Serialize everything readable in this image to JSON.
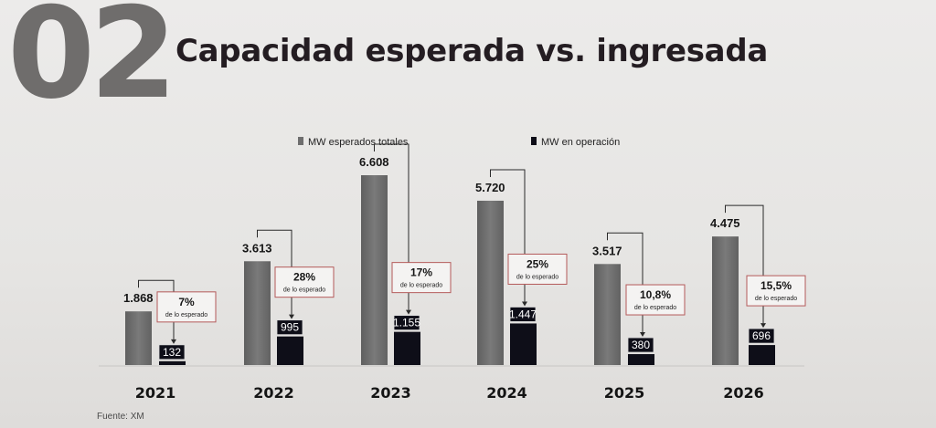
{
  "header": {
    "section_number": "02",
    "title": "Capacidad esperada vs. ingresada"
  },
  "footer": {
    "source": "Fuente: XM"
  },
  "colors": {
    "expected": "#6e6e6e",
    "operation": "#0e0e18",
    "callout_border": "#b45a5a"
  },
  "chart_data": {
    "type": "bar",
    "title": "Capacidad esperada vs. ingresada",
    "categories": [
      "2021",
      "2022",
      "2023",
      "2024",
      "2025",
      "2026"
    ],
    "series": [
      {
        "name": "MW esperados totales",
        "values": [
          1868,
          3613,
          6608,
          5720,
          3517,
          4475
        ],
        "labels": [
          "1.868",
          "3.613",
          "6.608",
          "5.720",
          "3.517",
          "4.475"
        ]
      },
      {
        "name": "MW en operación",
        "values": [
          132,
          995,
          1155,
          1447,
          380,
          696
        ],
        "labels": [
          "132",
          "995",
          "1.155",
          "1.447",
          "380",
          "696"
        ]
      }
    ],
    "annotations": {
      "percent_labels": [
        "7%",
        "28%",
        "17%",
        "25%",
        "10,8%",
        "15,5%"
      ],
      "percent_sublabel": "de lo esperado"
    },
    "legend_position": "top",
    "grid": false,
    "ylim": [
      0,
      7000
    ]
  }
}
